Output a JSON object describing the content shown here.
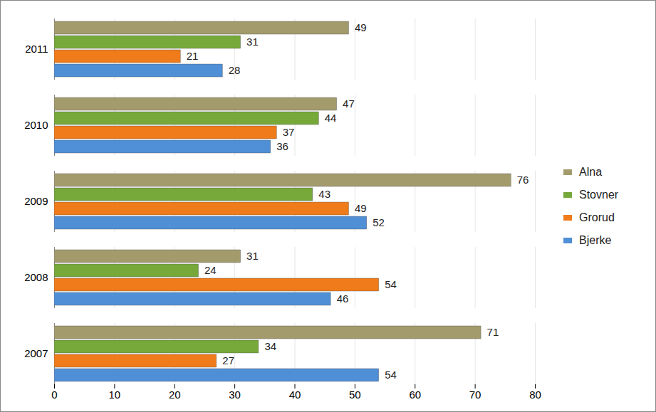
{
  "chart_data": {
    "type": "bar",
    "orientation": "horizontal",
    "categories": [
      "2007",
      "2008",
      "2009",
      "2010",
      "2011"
    ],
    "series": [
      {
        "name": "Bjerke",
        "color": "#4f8fd6",
        "values": [
          54,
          46,
          52,
          36,
          28
        ]
      },
      {
        "name": "Grorud",
        "color": "#f07b1a",
        "values": [
          27,
          54,
          49,
          37,
          21
        ]
      },
      {
        "name": "Stovner",
        "color": "#76a83a",
        "values": [
          34,
          24,
          43,
          44,
          31
        ]
      },
      {
        "name": "Alna",
        "color": "#a39b6c",
        "values": [
          71,
          31,
          76,
          47,
          49
        ]
      }
    ],
    "xlim": [
      0,
      80
    ],
    "xticks": [
      0,
      10,
      20,
      30,
      40,
      50,
      60,
      70,
      80
    ],
    "grid": true,
    "data_labels": true,
    "legend": "right"
  }
}
